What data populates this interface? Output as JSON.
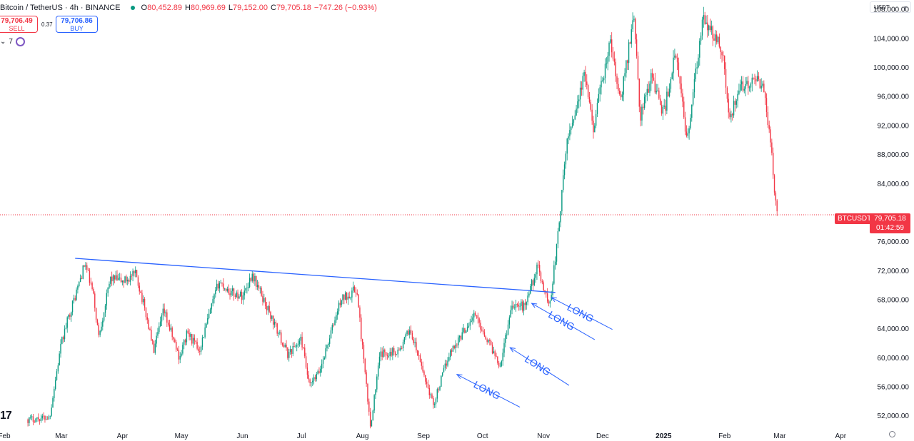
{
  "header": {
    "symbol": "Bitcoin / TetherUS · 4h · BINANCE",
    "open_label": "O",
    "open": "80,452.89",
    "high_label": "H",
    "high": "80,969.69",
    "low_label": "L",
    "low": "79,152.00",
    "close_label": "C",
    "close": "79,705.18",
    "change": "−747.26 (−0.93%)"
  },
  "trade": {
    "sell_price": "79,706.49",
    "sell_label": "SELL",
    "spread": "0.37",
    "buy_price": "79,706.86",
    "buy_label": "BUY"
  },
  "indicators": {
    "collapse_glyph": "⌄",
    "count": "7"
  },
  "currency": "USDT",
  "logo": "17",
  "last_price": {
    "symbol": "BTCUSDT",
    "value": "79,705.18",
    "countdown": "01:42:59"
  },
  "colors": {
    "up": "#089981",
    "down": "#f23645",
    "trendline": "#2962ff",
    "annotation": "#2962ff",
    "price_line": "#f23645"
  },
  "chart_data": {
    "type": "candlestick",
    "timeframe": "4h",
    "y_axis": {
      "ylim": [
        50500,
        108800
      ],
      "ticks": [
        52000,
        56000,
        60000,
        64000,
        68000,
        72000,
        76000,
        80000,
        84000,
        88000,
        92000,
        96000,
        100000,
        104000,
        108000
      ],
      "tick_labels": [
        "52,000.00",
        "56,000.00",
        "60,000.00",
        "64,000.00",
        "68,000.00",
        "72,000.00",
        "76,000.00",
        "",
        "84,000.00",
        "88,000.00",
        "92,000.00",
        "96,000.00",
        "100,000.00",
        "104,000.00",
        "108,000.00"
      ]
    },
    "x_axis": {
      "xlim": [
        "2024-02-01",
        "2025-05-01"
      ],
      "ticks": [
        "2024-02-01",
        "2024-03-01",
        "2024-04-01",
        "2024-05-01",
        "2024-06-01",
        "2024-07-01",
        "2024-08-01",
        "2024-09-01",
        "2024-10-01",
        "2024-11-01",
        "2024-12-01",
        "2025-01-01",
        "2025-02-01",
        "2025-03-01",
        "2025-04-01"
      ],
      "tick_labels": [
        "Feb",
        "Mar",
        "Apr",
        "May",
        "Jun",
        "Jul",
        "Aug",
        "Sep",
        "Oct",
        "Nov",
        "Dec",
        "2025",
        "Feb",
        "Mar",
        "Apr"
      ]
    },
    "price_path": [
      [
        "2024-02-13",
        51500
      ],
      [
        "2024-02-24",
        51800
      ],
      [
        "2024-02-27",
        57000
      ],
      [
        "2024-03-01",
        62000
      ],
      [
        "2024-03-05",
        66000
      ],
      [
        "2024-03-08",
        68500
      ],
      [
        "2024-03-13",
        73000
      ],
      [
        "2024-03-17",
        69000
      ],
      [
        "2024-03-20",
        63000
      ],
      [
        "2024-03-26",
        71000
      ],
      [
        "2024-04-01",
        70500
      ],
      [
        "2024-04-08",
        71500
      ],
      [
        "2024-04-13",
        66000
      ],
      [
        "2024-04-17",
        61000
      ],
      [
        "2024-04-22",
        66500
      ],
      [
        "2024-04-30",
        60000
      ],
      [
        "2024-05-04",
        63500
      ],
      [
        "2024-05-10",
        61000
      ],
      [
        "2024-05-20",
        70500
      ],
      [
        "2024-05-26",
        69000
      ],
      [
        "2024-06-01",
        68500
      ],
      [
        "2024-06-06",
        71500
      ],
      [
        "2024-06-15",
        66000
      ],
      [
        "2024-06-24",
        60500
      ],
      [
        "2024-07-01",
        62500
      ],
      [
        "2024-07-05",
        56000
      ],
      [
        "2024-07-10",
        58000
      ],
      [
        "2024-07-21",
        68000
      ],
      [
        "2024-07-29",
        69500
      ],
      [
        "2024-08-05",
        50500
      ],
      [
        "2024-08-10",
        60500
      ],
      [
        "2024-08-20",
        61000
      ],
      [
        "2024-08-25",
        64000
      ],
      [
        "2024-09-06",
        53500
      ],
      [
        "2024-09-14",
        60500
      ],
      [
        "2024-09-27",
        66000
      ],
      [
        "2024-10-10",
        59000
      ],
      [
        "2024-10-16",
        67500
      ],
      [
        "2024-10-22",
        67000
      ],
      [
        "2024-10-29",
        72500
      ],
      [
        "2024-11-04",
        67000
      ],
      [
        "2024-11-08",
        76000
      ],
      [
        "2024-11-13",
        90000
      ],
      [
        "2024-11-22",
        99000
      ],
      [
        "2024-11-26",
        91500
      ],
      [
        "2024-12-05",
        103500
      ],
      [
        "2024-12-10",
        95000
      ],
      [
        "2024-12-17",
        107500
      ],
      [
        "2024-12-20",
        93000
      ],
      [
        "2024-12-26",
        99000
      ],
      [
        "2025-01-01",
        93500
      ],
      [
        "2025-01-07",
        102000
      ],
      [
        "2025-01-13",
        90000
      ],
      [
        "2025-01-21",
        106500
      ],
      [
        "2025-01-31",
        102500
      ],
      [
        "2025-02-03",
        93000
      ],
      [
        "2025-02-10",
        97500
      ],
      [
        "2025-02-20",
        98000
      ],
      [
        "2025-02-24",
        91000
      ],
      [
        "2025-02-26",
        84000
      ],
      [
        "2025-02-28",
        79705
      ]
    ],
    "last_close": 79705.18,
    "trendline": {
      "from": [
        "2024-03-08",
        73700
      ],
      "to": [
        "2024-11-07",
        69000
      ]
    },
    "annotations": [
      {
        "text": "LONG",
        "arrow_from": [
          "2024-09-18",
          57700
        ],
        "arrow_to": [
          "2024-10-20",
          53200
        ]
      },
      {
        "text": "LONG",
        "arrow_from": [
          "2024-10-15",
          61400
        ],
        "arrow_to": [
          "2024-11-14",
          56200
        ]
      },
      {
        "text": "LONG",
        "arrow_from": [
          "2024-10-26",
          67500
        ],
        "arrow_to": [
          "2024-11-27",
          62500
        ]
      },
      {
        "text": "LONG",
        "arrow_from": [
          "2024-11-05",
          68300
        ],
        "arrow_to": [
          "2024-12-06",
          63900
        ]
      }
    ]
  }
}
